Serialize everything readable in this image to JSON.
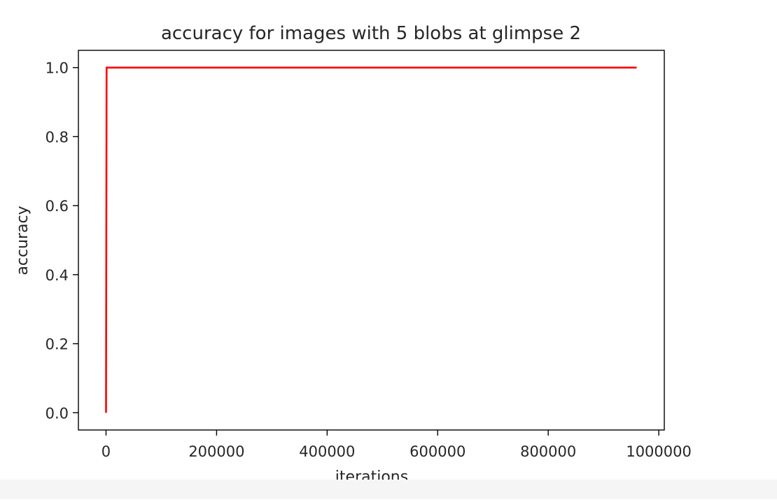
{
  "chart_data": {
    "type": "line",
    "title": "accuracy for images with 5 blobs at glimpse 2",
    "xlabel": "iterations",
    "ylabel": "accuracy",
    "xlim": [
      -50000,
      1010000
    ],
    "ylim": [
      -0.05,
      1.05
    ],
    "xticks": [
      0,
      200000,
      400000,
      600000,
      800000,
      1000000
    ],
    "xtick_labels": [
      "0",
      "200000",
      "400000",
      "600000",
      "800000",
      "1000000"
    ],
    "yticks": [
      0.0,
      0.2,
      0.4,
      0.6,
      0.8,
      1.0
    ],
    "ytick_labels": [
      "0.0",
      "0.2",
      "0.4",
      "0.6",
      "0.8",
      "1.0"
    ],
    "grid": false,
    "series": [
      {
        "color": "#ff0000",
        "x": [
          0,
          1000,
          960000
        ],
        "y": [
          0.0,
          1.0,
          1.0
        ]
      }
    ]
  }
}
